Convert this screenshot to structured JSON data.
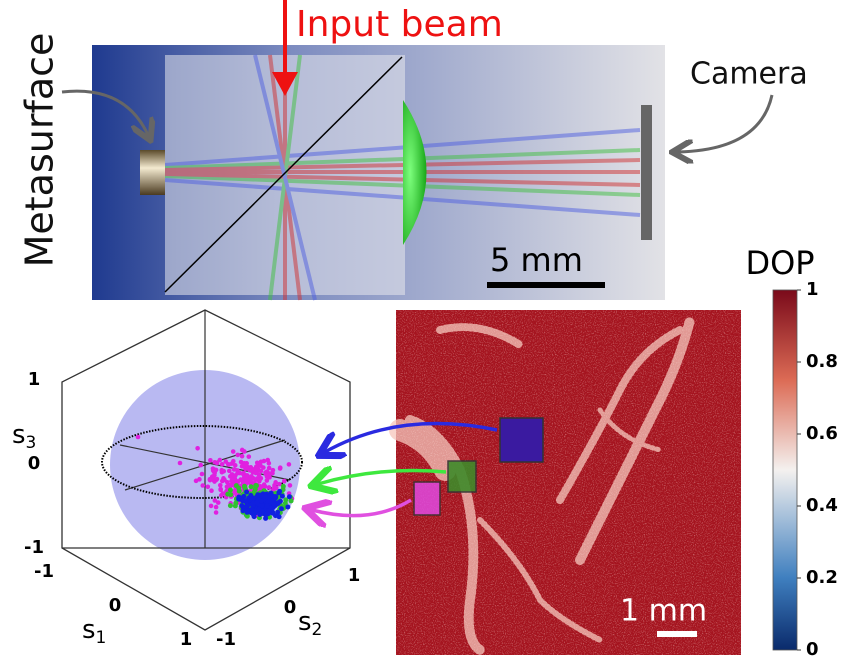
{
  "optical_setup": {
    "input_label": "Input beam",
    "metasurface_label": "Metasurface",
    "camera_label": "Camera",
    "scale_bar": "5 mm"
  },
  "stokes_sphere": {
    "lim": [
      -1,
      1
    ],
    "s1_label": {
      "base": "s",
      "sub": "1"
    },
    "s2_label": {
      "base": "s",
      "sub": "2"
    },
    "s3_label": {
      "base": "s",
      "sub": "3"
    },
    "s1_ticks": [
      -1,
      0,
      1
    ],
    "s2_ticks": [
      -1,
      0,
      1
    ],
    "s3_ticks": [
      -1,
      0,
      1
    ]
  },
  "dop_map": {
    "scale_bar": "1 mm",
    "colorbar": {
      "title": "DOP",
      "lim": [
        0,
        1
      ],
      "ticks": [
        0,
        0.2,
        0.4,
        0.6,
        0.8,
        1
      ]
    }
  }
}
